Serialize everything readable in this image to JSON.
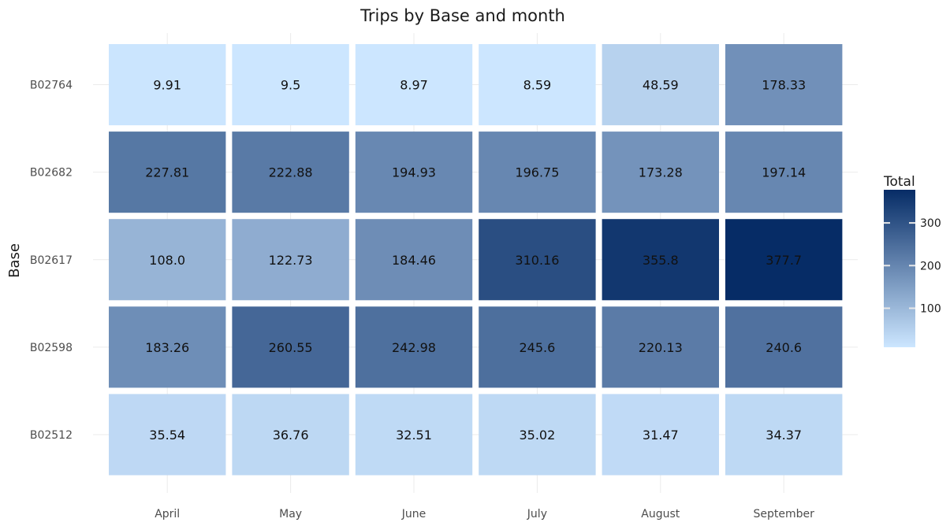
{
  "chart_data": {
    "type": "heatmap",
    "title": "Trips by Base and month",
    "xlabel": "",
    "ylabel": "Base",
    "x_categories": [
      "April",
      "May",
      "June",
      "July",
      "August",
      "September"
    ],
    "y_categories": [
      "B02764",
      "B02682",
      "B02617",
      "B02598",
      "B02512"
    ],
    "values": [
      [
        9.91,
        9.5,
        8.97,
        8.59,
        48.59,
        178.33
      ],
      [
        227.81,
        222.88,
        194.93,
        196.75,
        173.28,
        197.14
      ],
      [
        108.0,
        122.73,
        184.46,
        310.16,
        355.8,
        377.7
      ],
      [
        183.26,
        260.55,
        242.98,
        245.6,
        220.13,
        240.6
      ],
      [
        35.54,
        36.76,
        32.51,
        35.02,
        31.47,
        34.37
      ]
    ],
    "value_labels": [
      [
        "9.91",
        "9.5",
        "8.97",
        "8.59",
        "48.59",
        "178.33"
      ],
      [
        "227.81",
        "222.88",
        "194.93",
        "196.75",
        "173.28",
        "197.14"
      ],
      [
        "108.0",
        "122.73",
        "184.46",
        "310.16",
        "355.8",
        "377.7"
      ],
      [
        "183.26",
        "260.55",
        "242.98",
        "245.6",
        "220.13",
        "240.6"
      ],
      [
        "35.54",
        "36.76",
        "32.51",
        "35.02",
        "31.47",
        "34.37"
      ]
    ],
    "legend": {
      "title": "Total",
      "ticks": [
        100,
        200,
        300
      ],
      "tick_labels": [
        "100",
        "200",
        "300"
      ],
      "range": [
        8.59,
        377.7
      ],
      "position": "right"
    },
    "color_scale": {
      "low": "#cce6ff",
      "high": "#062c66"
    },
    "grid": true
  }
}
